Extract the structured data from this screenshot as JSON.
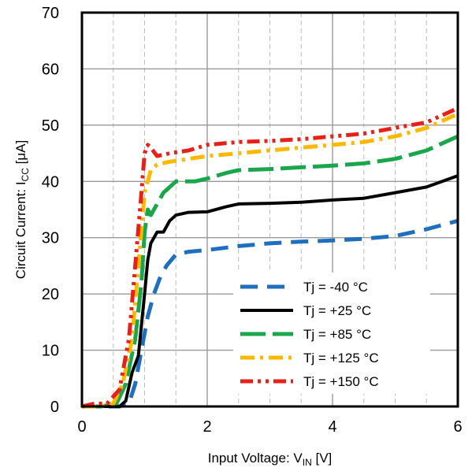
{
  "chart_data": {
    "type": "line",
    "title": "",
    "xlabel": "Input Voltage: V",
    "xlabel_sub": "IN",
    "xlabel_unit": " [V]",
    "ylabel": "Circuit Current: I",
    "ylabel_sub": "CC",
    "ylabel_unit": " [μA]",
    "xlim": [
      0,
      6
    ],
    "ylim": [
      0,
      70
    ],
    "x_ticks": [
      0,
      2,
      4,
      6
    ],
    "x_tick_labels": [
      "0",
      "2",
      "4",
      "6"
    ],
    "y_ticks": [
      0,
      10,
      20,
      30,
      40,
      50,
      60,
      70
    ],
    "y_tick_labels": [
      "0",
      "10",
      "20",
      "30",
      "40",
      "50",
      "60",
      "70"
    ],
    "x_minor_step": 0.5,
    "grid": true,
    "legend_position": "bottom-right",
    "series": [
      {
        "name": "Tj = -40 °C",
        "color": "#1f6fbf",
        "dash": "dash",
        "x": [
          0,
          0.3,
          0.6,
          0.75,
          0.85,
          0.95,
          1.05,
          1.15,
          1.25,
          1.35,
          1.5,
          1.7,
          2.0,
          2.5,
          3.0,
          3.5,
          4.0,
          4.5,
          5.0,
          5.5,
          6.0
        ],
        "y": [
          0,
          0,
          0,
          0.5,
          4,
          10,
          16,
          20,
          23,
          25,
          27,
          27.5,
          27.8,
          28.5,
          29,
          29.3,
          29.5,
          29.8,
          30.3,
          31.5,
          33
        ]
      },
      {
        "name": "Tj = +25 °C",
        "color": "#000000",
        "dash": "solid",
        "x": [
          0,
          0.3,
          0.6,
          0.7,
          0.8,
          0.9,
          1.0,
          1.05,
          1.1,
          1.2,
          1.3,
          1.4,
          1.5,
          1.7,
          2.0,
          2.3,
          2.5,
          3.0,
          3.5,
          4.0,
          4.5,
          5.0,
          5.5,
          6.0
        ],
        "y": [
          0,
          0,
          0,
          1,
          6,
          9,
          20,
          26,
          29,
          31,
          31,
          33,
          34,
          34.5,
          34.6,
          35.5,
          36,
          36.1,
          36.3,
          36.7,
          37,
          38,
          39,
          41
        ]
      },
      {
        "name": "Tj = +85 °C",
        "color": "#1aa64a",
        "dash": "longdash",
        "x": [
          0,
          0.3,
          0.55,
          0.7,
          0.85,
          0.95,
          1.0,
          1.05,
          1.1,
          1.2,
          1.3,
          1.5,
          1.8,
          2.0,
          2.3,
          2.5,
          3.0,
          3.5,
          4.0,
          4.5,
          5.0,
          5.5,
          6.0
        ],
        "y": [
          0,
          0,
          0.5,
          4,
          12,
          22,
          31,
          35,
          34,
          36,
          38,
          40,
          40,
          40.5,
          41.5,
          42,
          42.2,
          42.5,
          42.8,
          43.2,
          44,
          45.5,
          48
        ]
      },
      {
        "name": "Tj = +125 °C",
        "color": "#ffb800",
        "dash": "dashdot",
        "x": [
          0,
          0.3,
          0.5,
          0.65,
          0.8,
          0.9,
          1.0,
          1.1,
          1.2,
          1.4,
          1.7,
          2.0,
          2.5,
          3.0,
          3.5,
          4.0,
          4.5,
          5.0,
          5.5,
          6.0
        ],
        "y": [
          0,
          0,
          0.5,
          4,
          12,
          25,
          38,
          42,
          43,
          43.5,
          44,
          44.5,
          45,
          45.5,
          46,
          46.5,
          47,
          48,
          49.5,
          52
        ]
      },
      {
        "name": "Tj = +150 °C",
        "color": "#e8201a",
        "dash": "dashdotdot",
        "x": [
          0,
          0.2,
          0.4,
          0.6,
          0.75,
          0.85,
          0.95,
          1.0,
          1.05,
          1.1,
          1.2,
          1.4,
          1.7,
          2.0,
          2.5,
          3.0,
          3.5,
          4.0,
          4.5,
          5.0,
          5.5,
          6.0
        ],
        "y": [
          0,
          0.5,
          0.5,
          3,
          12,
          25,
          38,
          45,
          46.5,
          46,
          44.5,
          45,
          45.5,
          46.5,
          47,
          47.2,
          47.5,
          48,
          48.5,
          49.5,
          50.5,
          53
        ]
      }
    ]
  }
}
